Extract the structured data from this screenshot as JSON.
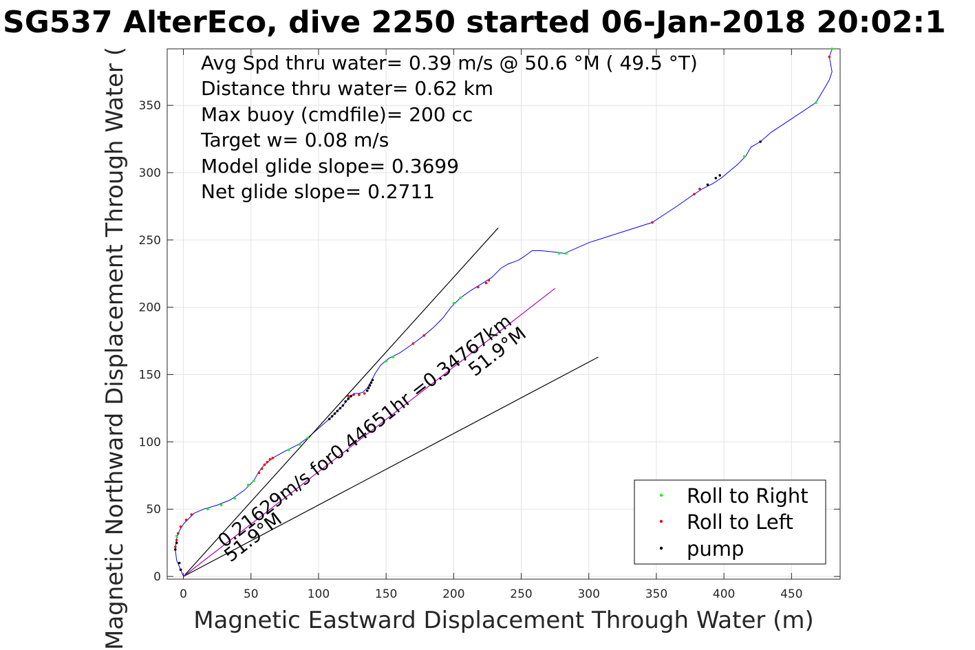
{
  "chart_data": {
    "type": "line",
    "title": "SG537 AlterEco, dive 2250 started 06-Jan-2018 20:02:1",
    "xlabel": "Magnetic Eastward Displacement Through Water (m)",
    "ylabel": "Magnetic Northward Displacement Through Water (",
    "xlim": [
      -12,
      486
    ],
    "ylim": [
      -2,
      392
    ],
    "xticks": [
      0,
      50,
      100,
      150,
      200,
      250,
      300,
      350,
      400,
      450
    ],
    "yticks": [
      0,
      50,
      100,
      150,
      200,
      250,
      300,
      350
    ],
    "grid": true,
    "info_lines": [
      "Avg Spd thru water=  0.39 m/s @  50.6 °M ( 49.5 °T)",
      "Distance thru water=  0.62 km",
      "Max buoy (cmdfile)= 200 cc",
      "Target w= 0.08 m/s",
      "Model glide slope= 0.3699",
      "Net glide slope= 0.2711"
    ],
    "annotations": [
      "0.21629m/s for0.44651hr =0.34767km",
      "51.9°M",
      "51.9°M"
    ],
    "legend": {
      "position": "bottom-right",
      "entries": [
        {
          "label": "Roll to Right",
          "color": "#00ff00"
        },
        {
          "label": "Roll to Left",
          "color": "#ff0000"
        },
        {
          "label": "pump",
          "color": "#000000"
        }
      ]
    },
    "series": [
      {
        "type": "line",
        "color": "#0000ff",
        "x": [
          0,
          -2,
          -5,
          -6,
          -5,
          -3,
          0,
          4,
          8,
          15,
          25,
          35,
          45,
          52,
          56,
          60,
          66,
          75,
          85,
          92,
          100,
          108,
          113,
          118,
          122,
          126,
          130,
          133,
          136,
          139,
          142,
          146,
          152,
          160,
          170,
          178,
          185,
          192,
          198,
          205,
          212,
          220,
          228,
          235,
          240,
          248,
          254,
          258,
          265,
          275,
          282,
          300,
          325,
          347,
          365,
          378,
          384,
          392,
          398,
          410,
          416,
          420,
          427,
          435,
          450,
          468,
          474,
          478,
          480,
          478,
          480
        ],
        "y": [
          0,
          5,
          12,
          20,
          28,
          34,
          39,
          43,
          47,
          50,
          53,
          57,
          64,
          71,
          78,
          83,
          88,
          93,
          98,
          103,
          110,
          117,
          122,
          127,
          132,
          136,
          136,
          137,
          140,
          145,
          151,
          157,
          162,
          166,
          173,
          179,
          185,
          192,
          200,
          207,
          212,
          217,
          222,
          229,
          232,
          235,
          239,
          242,
          242,
          241,
          240,
          248,
          256,
          263,
          275,
          284,
          288,
          292,
          296,
          306,
          312,
          319,
          323,
          330,
          340,
          352,
          362,
          369,
          375,
          386,
          392
        ]
      },
      {
        "type": "ref-line",
        "color": "#000000",
        "x": [
          0,
          233
        ],
        "y": [
          0,
          259
        ]
      },
      {
        "type": "ref-line",
        "color": "#000000",
        "x": [
          0,
          307
        ],
        "y": [
          0,
          163
        ]
      },
      {
        "type": "ref-line",
        "color": "#b000b0",
        "x": [
          0,
          275
        ],
        "y": [
          0,
          214
        ]
      },
      {
        "type": "markers",
        "name": "Roll to Right",
        "color": "#00ff00",
        "x": [
          -5,
          18,
          28,
          38,
          48,
          52,
          78,
          86,
          92,
          150,
          155,
          200,
          205,
          278,
          283,
          415,
          468,
          480
        ],
        "y": [
          30,
          50,
          53,
          58,
          68,
          71,
          94,
          98,
          103,
          160,
          163,
          203,
          207,
          240,
          240,
          312,
          352,
          392
        ]
      },
      {
        "type": "markers",
        "name": "Roll to Left",
        "color": "#ff0000",
        "x": [
          -6,
          -5,
          -4,
          -2,
          2,
          6,
          56,
          58,
          60,
          62,
          64,
          66,
          122,
          126,
          130,
          134,
          170,
          178,
          218,
          224,
          226,
          347,
          378,
          382,
          478
        ],
        "y": [
          22,
          27,
          32,
          37,
          42,
          46,
          77,
          80,
          83,
          85,
          87,
          88,
          134,
          135,
          135,
          136,
          173,
          179,
          215,
          218,
          220,
          263,
          284,
          288,
          386
        ]
      },
      {
        "type": "markers",
        "name": "pump",
        "color": "#000000",
        "x": [
          -6,
          -5,
          -3,
          -2,
          108,
          110,
          112,
          114,
          116,
          118,
          120,
          122,
          124,
          136,
          137,
          138,
          139,
          140,
          388,
          394,
          397,
          427
        ],
        "y": [
          20,
          25,
          10,
          5,
          117,
          119,
          121,
          123,
          125,
          127,
          130,
          132,
          134,
          138,
          140,
          142,
          144,
          146,
          291,
          296,
          298,
          323
        ]
      }
    ]
  }
}
